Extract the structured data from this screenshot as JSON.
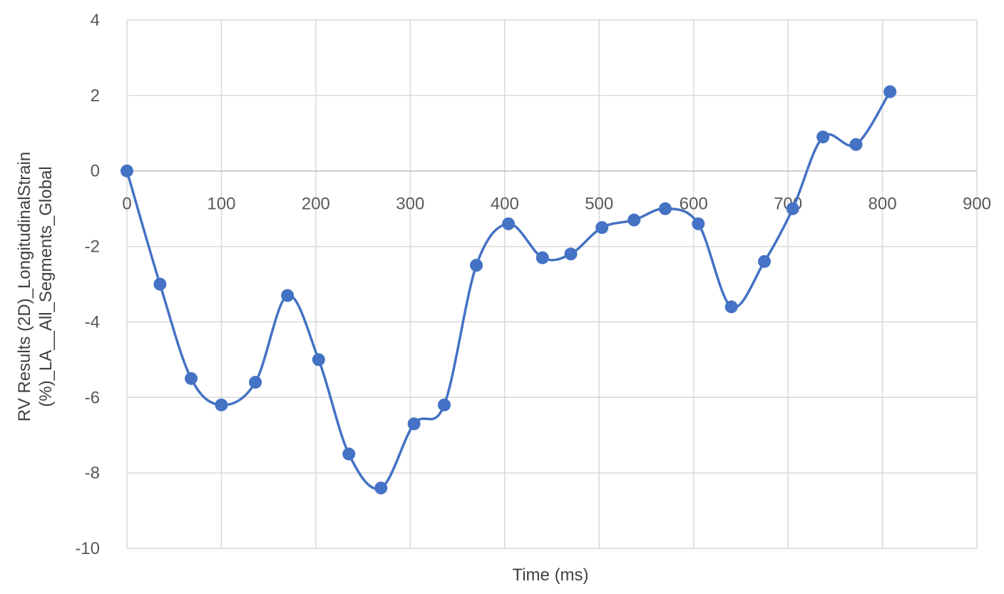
{
  "chart_data": {
    "type": "line",
    "title": "",
    "xlabel": "Time (ms)",
    "ylabel_lines": [
      "RV Results (2D)_LongitudinalStrain",
      "(%)_LA__All_Segments_Global"
    ],
    "xlim": [
      0,
      900
    ],
    "ylim": [
      -10,
      4
    ],
    "x_ticks": [
      0,
      100,
      200,
      300,
      400,
      500,
      600,
      700,
      800,
      900
    ],
    "y_ticks": [
      4,
      2,
      0,
      -2,
      -4,
      -6,
      -8,
      -10
    ],
    "grid": true,
    "legend": "none",
    "smoothed": true,
    "line_color": "#4472C4",
    "marker_color": "#4472C4",
    "series": [
      {
        "x": [
          0,
          35,
          68,
          100,
          136,
          170,
          203,
          235,
          269,
          304,
          336,
          370,
          404,
          440,
          470,
          503,
          537,
          570,
          605,
          640,
          675,
          705,
          737,
          772,
          808
        ],
        "y": [
          0,
          -3.0,
          -5.5,
          -6.2,
          -5.6,
          -3.3,
          -5.0,
          -7.5,
          -8.4,
          -6.7,
          -6.2,
          -2.5,
          -1.4,
          -2.3,
          -2.2,
          -1.5,
          -1.3,
          -1.0,
          -1.4,
          -3.6,
          -2.4,
          -1.0,
          0.9,
          0.7,
          2.1
        ]
      }
    ]
  }
}
